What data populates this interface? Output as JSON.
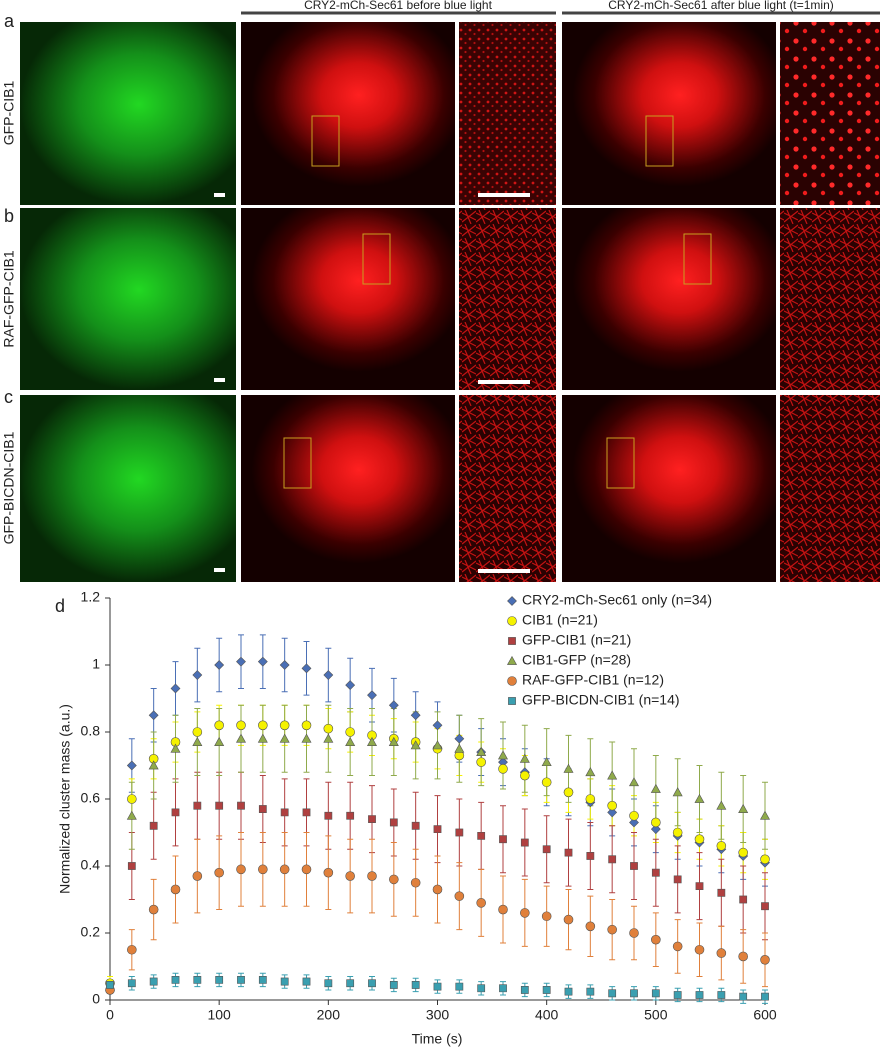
{
  "figure": {
    "panel_labels": [
      "a",
      "b",
      "c",
      "d"
    ],
    "column_headers": [
      "CRY2-mCh-Sec61 before blue light",
      "CRY2-mCh-Sec61 after blue light (t=1min)"
    ],
    "row_labels": [
      "GFP-CIB1",
      "RAF-GFP-CIB1",
      "GFP-BICDN-CIB1"
    ]
  },
  "chart_data": {
    "type": "scatter",
    "xlabel": "Time (s)",
    "ylabel": "Normalized cluster mass (a.u.)",
    "x": [
      0,
      20,
      40,
      60,
      80,
      100,
      120,
      140,
      160,
      180,
      200,
      220,
      240,
      260,
      280,
      300,
      320,
      340,
      360,
      380,
      400,
      420,
      440,
      460,
      480,
      500,
      520,
      540,
      560,
      580,
      600
    ],
    "xlim": [
      0,
      600
    ],
    "xticks": [
      0,
      100,
      200,
      300,
      400,
      500,
      600
    ],
    "ylim": [
      0,
      1.2
    ],
    "yticks": [
      0,
      0.2,
      0.4,
      0.6,
      0.8,
      1,
      1.2
    ],
    "legend": "upper right",
    "series": [
      {
        "name": "CRY2-mCh-Sec61 only (n=34)",
        "color": "#4a6fb5",
        "marker": "diamond",
        "values": [
          0.05,
          0.7,
          0.85,
          0.93,
          0.97,
          1.0,
          1.01,
          1.01,
          1.0,
          0.99,
          0.97,
          0.94,
          0.91,
          0.88,
          0.85,
          0.82,
          0.78,
          0.74,
          0.71,
          0.68,
          0.65,
          0.62,
          0.59,
          0.56,
          0.53,
          0.51,
          0.49,
          0.47,
          0.45,
          0.43,
          0.41
        ],
        "errors": [
          0.02,
          0.08,
          0.08,
          0.08,
          0.08,
          0.08,
          0.08,
          0.08,
          0.08,
          0.08,
          0.08,
          0.08,
          0.08,
          0.08,
          0.07,
          0.07,
          0.07,
          0.07,
          0.07,
          0.07,
          0.07,
          0.07,
          0.07,
          0.07,
          0.07,
          0.07,
          0.07,
          0.07,
          0.07,
          0.07,
          0.07
        ]
      },
      {
        "name": "CIB1 (n=21)",
        "color": "#f5f200",
        "marker": "circle",
        "values": [
          0.05,
          0.6,
          0.72,
          0.77,
          0.8,
          0.82,
          0.82,
          0.82,
          0.82,
          0.82,
          0.81,
          0.8,
          0.79,
          0.78,
          0.77,
          0.75,
          0.73,
          0.71,
          0.69,
          0.67,
          0.65,
          0.62,
          0.6,
          0.58,
          0.55,
          0.53,
          0.5,
          0.48,
          0.46,
          0.44,
          0.42
        ],
        "errors": [
          0.02,
          0.06,
          0.06,
          0.06,
          0.06,
          0.06,
          0.06,
          0.06,
          0.06,
          0.06,
          0.06,
          0.06,
          0.06,
          0.06,
          0.06,
          0.06,
          0.06,
          0.06,
          0.06,
          0.06,
          0.06,
          0.06,
          0.06,
          0.06,
          0.06,
          0.06,
          0.06,
          0.06,
          0.06,
          0.06,
          0.06
        ]
      },
      {
        "name": "GFP-CIB1 (n=21)",
        "color": "#b04040",
        "marker": "square",
        "values": [
          0.04,
          0.4,
          0.52,
          0.56,
          0.58,
          0.58,
          0.58,
          0.57,
          0.56,
          0.56,
          0.55,
          0.55,
          0.54,
          0.53,
          0.52,
          0.51,
          0.5,
          0.49,
          0.48,
          0.47,
          0.45,
          0.44,
          0.43,
          0.42,
          0.4,
          0.38,
          0.36,
          0.34,
          0.32,
          0.3,
          0.28
        ],
        "errors": [
          0.02,
          0.1,
          0.1,
          0.1,
          0.1,
          0.1,
          0.1,
          0.1,
          0.1,
          0.1,
          0.1,
          0.1,
          0.1,
          0.1,
          0.1,
          0.1,
          0.1,
          0.1,
          0.1,
          0.1,
          0.1,
          0.1,
          0.1,
          0.1,
          0.1,
          0.1,
          0.1,
          0.1,
          0.1,
          0.1,
          0.1
        ]
      },
      {
        "name": "CIB1-GFP (n=28)",
        "color": "#8faa4b",
        "marker": "triangle",
        "values": [
          0.04,
          0.55,
          0.7,
          0.75,
          0.77,
          0.77,
          0.78,
          0.78,
          0.78,
          0.78,
          0.78,
          0.77,
          0.77,
          0.77,
          0.76,
          0.76,
          0.75,
          0.74,
          0.73,
          0.72,
          0.71,
          0.69,
          0.68,
          0.67,
          0.65,
          0.63,
          0.62,
          0.6,
          0.58,
          0.57,
          0.55
        ],
        "errors": [
          0.02,
          0.1,
          0.1,
          0.1,
          0.1,
          0.1,
          0.1,
          0.1,
          0.1,
          0.1,
          0.1,
          0.1,
          0.1,
          0.1,
          0.1,
          0.1,
          0.1,
          0.1,
          0.1,
          0.1,
          0.1,
          0.1,
          0.1,
          0.1,
          0.1,
          0.1,
          0.1,
          0.1,
          0.1,
          0.1,
          0.1
        ]
      },
      {
        "name": "RAF-GFP-CIB1 (n=12)",
        "color": "#e0803b",
        "marker": "circle",
        "values": [
          0.03,
          0.15,
          0.27,
          0.33,
          0.37,
          0.38,
          0.39,
          0.39,
          0.39,
          0.39,
          0.38,
          0.37,
          0.37,
          0.36,
          0.35,
          0.33,
          0.31,
          0.29,
          0.27,
          0.26,
          0.25,
          0.24,
          0.22,
          0.21,
          0.2,
          0.18,
          0.16,
          0.15,
          0.14,
          0.13,
          0.12
        ],
        "errors": [
          0.01,
          0.06,
          0.09,
          0.1,
          0.11,
          0.11,
          0.11,
          0.11,
          0.11,
          0.11,
          0.11,
          0.11,
          0.11,
          0.11,
          0.1,
          0.1,
          0.1,
          0.1,
          0.1,
          0.1,
          0.09,
          0.09,
          0.09,
          0.09,
          0.08,
          0.08,
          0.08,
          0.08,
          0.08,
          0.08,
          0.08
        ]
      },
      {
        "name": "GFP-BICDN-CIB1 (n=14)",
        "color": "#3a9fb0",
        "marker": "square",
        "values": [
          0.045,
          0.05,
          0.055,
          0.06,
          0.06,
          0.06,
          0.06,
          0.06,
          0.055,
          0.055,
          0.05,
          0.05,
          0.05,
          0.045,
          0.045,
          0.04,
          0.04,
          0.035,
          0.035,
          0.03,
          0.03,
          0.025,
          0.025,
          0.02,
          0.02,
          0.02,
          0.015,
          0.015,
          0.015,
          0.01,
          0.01
        ],
        "errors": [
          0.01,
          0.02,
          0.02,
          0.02,
          0.02,
          0.02,
          0.02,
          0.02,
          0.02,
          0.02,
          0.02,
          0.02,
          0.02,
          0.02,
          0.02,
          0.02,
          0.02,
          0.02,
          0.02,
          0.02,
          0.02,
          0.02,
          0.02,
          0.02,
          0.02,
          0.02,
          0.02,
          0.02,
          0.02,
          0.02,
          0.02
        ]
      }
    ]
  }
}
